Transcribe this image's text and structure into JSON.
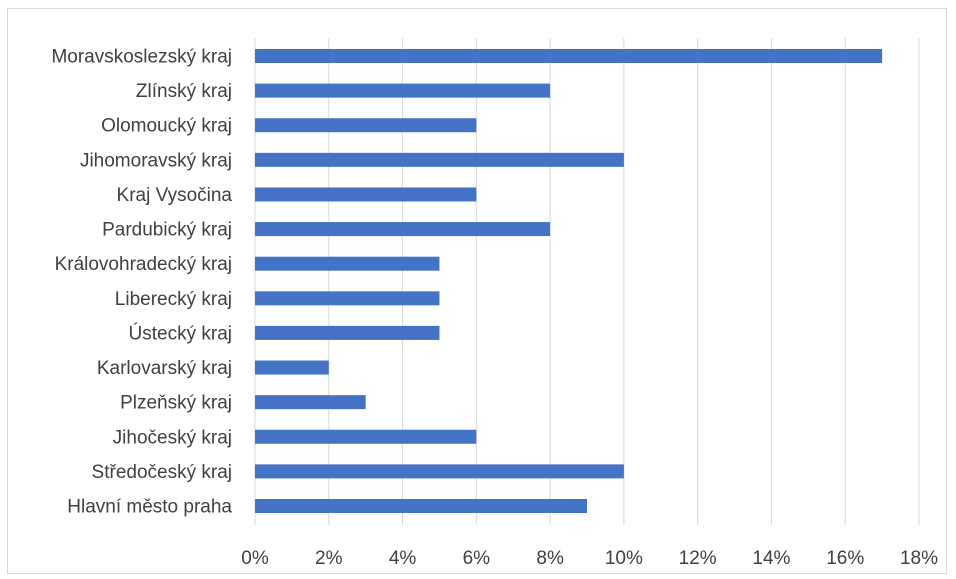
{
  "chart_data": {
    "type": "bar",
    "orientation": "horizontal",
    "categories": [
      "Moravskoslezský kraj",
      "Zlínský kraj",
      "Olomoucký kraj",
      "Jihomoravský kraj",
      "Kraj Vysočina",
      "Pardubický kraj",
      "Královohradecký kraj",
      "Liberecký kraj",
      "Ústecký kraj",
      "Karlovarský kraj",
      "Plzeňský kraj",
      "Jihočeský kraj",
      "Středočeský kraj",
      "Hlavní město praha"
    ],
    "values": [
      17,
      8,
      6,
      10,
      6,
      8,
      5,
      5,
      5,
      2,
      3,
      6,
      10,
      9
    ],
    "title": "",
    "xlabel": "",
    "ylabel": "",
    "xlim": [
      0,
      18
    ],
    "x_ticks": [
      "0%",
      "2%",
      "4%",
      "6%",
      "8%",
      "10%",
      "12%",
      "14%",
      "16%",
      "18%"
    ],
    "grid": true,
    "legend": "none",
    "bar_color": "#4472c4",
    "grid_color": "#d9d9d9",
    "text_color": "#404040"
  }
}
